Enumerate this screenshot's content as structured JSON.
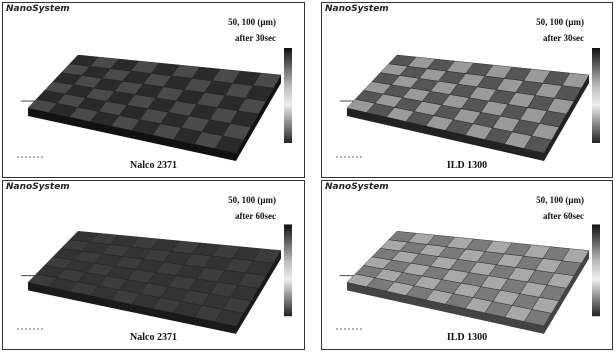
{
  "panels": [
    {
      "brand": "NanoSystem",
      "params": "50, 100 (μm)",
      "time": "after 30sec",
      "label": "Nalco 2371"
    },
    {
      "brand": "NanoSystem",
      "params": "50, 100 (μm)",
      "time": "after 30sec",
      "label": "ILD 1300"
    },
    {
      "brand": "NanoSystem",
      "params": "50, 100 (μm)",
      "time": "after 60sec",
      "label": "Nalco 2371"
    },
    {
      "brand": "NanoSystem",
      "params": "50, 100 (μm)",
      "time": "after 60sec",
      "label": "ILD 1300"
    }
  ]
}
